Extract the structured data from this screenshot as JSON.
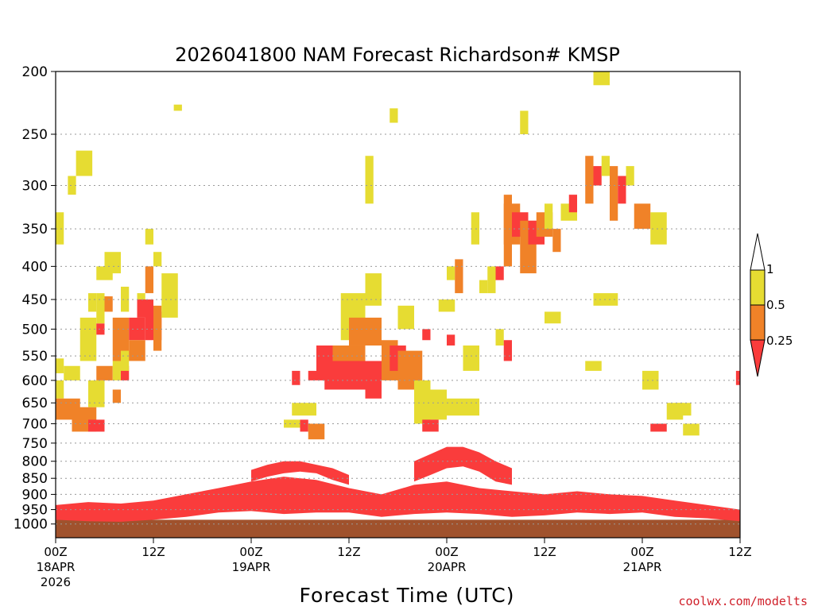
{
  "chart_data": {
    "type": "heatmap",
    "title": "2026041800 NAM Forecast Richardson# KMSP",
    "xlabel": "Forecast Time (UTC)",
    "ylabel": "",
    "credit": "coolwx.com/modelts",
    "x_range_hours": [
      0,
      84
    ],
    "y_range_hpa": [
      1050,
      200
    ],
    "y_ticks": [
      "200",
      "250",
      "300",
      "350",
      "400",
      "450",
      "500",
      "550",
      "600",
      "650",
      "700",
      "750",
      "800",
      "850",
      "900",
      "950",
      "1000"
    ],
    "y_tick_values": [
      200,
      250,
      300,
      350,
      400,
      450,
      500,
      550,
      600,
      650,
      700,
      750,
      800,
      850,
      900,
      950,
      1000
    ],
    "x_ticks": [
      {
        "hour": 0,
        "time": "00Z",
        "date": "18APR",
        "year": "2026"
      },
      {
        "hour": 12,
        "time": "12Z",
        "date": "",
        "year": ""
      },
      {
        "hour": 24,
        "time": "00Z",
        "date": "19APR",
        "year": ""
      },
      {
        "hour": 36,
        "time": "12Z",
        "date": "",
        "year": ""
      },
      {
        "hour": 48,
        "time": "00Z",
        "date": "20APR",
        "year": ""
      },
      {
        "hour": 60,
        "time": "12Z",
        "date": "",
        "year": ""
      },
      {
        "hour": 72,
        "time": "00Z",
        "date": "21APR",
        "year": ""
      },
      {
        "hour": 84,
        "time": "12Z",
        "date": "",
        "year": ""
      }
    ],
    "legend": {
      "labels": [
        "1",
        "0.5",
        "0.25"
      ],
      "levels": [
        {
          "range": "> 1",
          "color": "#ffffff"
        },
        {
          "range": "0.5 - 1",
          "color": "#e6dc32"
        },
        {
          "range": "0.25 - 0.5",
          "color": "#f08228"
        },
        {
          "range": "< 0.25",
          "color": "#fa3c3c"
        }
      ]
    },
    "ground_color": "#a0522d",
    "colors": {
      "yellow": "#e6dc32",
      "orange": "#f08228",
      "red": "#fa3c3c"
    },
    "cells": [
      {
        "c": "yellow",
        "x0": 0,
        "x1": 1,
        "p0": 370,
        "p1": 330
      },
      {
        "c": "yellow",
        "x0": 0,
        "x1": 1,
        "p0": 585,
        "p1": 555
      },
      {
        "c": "yellow",
        "x0": 0,
        "x1": 1,
        "p0": 640,
        "p1": 600
      },
      {
        "c": "orange",
        "x0": 0,
        "x1": 3,
        "p0": 690,
        "p1": 640
      },
      {
        "c": "yellow",
        "x0": 1,
        "x1": 3,
        "p0": 600,
        "p1": 570
      },
      {
        "c": "yellow",
        "x0": 1.5,
        "x1": 2.5,
        "p0": 310,
        "p1": 290
      },
      {
        "c": "yellow",
        "x0": 2.5,
        "x1": 4.5,
        "p0": 290,
        "p1": 265
      },
      {
        "c": "orange",
        "x0": 2,
        "x1": 5,
        "p0": 720,
        "p1": 660
      },
      {
        "c": "yellow",
        "x0": 4,
        "x1": 5,
        "p0": 470,
        "p1": 440
      },
      {
        "c": "yellow",
        "x0": 3,
        "x1": 5,
        "p0": 560,
        "p1": 480
      },
      {
        "c": "red",
        "x0": 5,
        "x1": 6,
        "p0": 510,
        "p1": 490
      },
      {
        "c": "yellow",
        "x0": 4,
        "x1": 6,
        "p0": 660,
        "p1": 600
      },
      {
        "c": "red",
        "x0": 4,
        "x1": 6,
        "p0": 720,
        "p1": 690
      },
      {
        "c": "yellow",
        "x0": 5,
        "x1": 6,
        "p0": 490,
        "p1": 440
      },
      {
        "c": "orange",
        "x0": 5,
        "x1": 7,
        "p0": 600,
        "p1": 570
      },
      {
        "c": "yellow",
        "x0": 5,
        "x1": 7,
        "p0": 420,
        "p1": 400
      },
      {
        "c": "yellow",
        "x0": 6,
        "x1": 8,
        "p0": 410,
        "p1": 380
      },
      {
        "c": "orange",
        "x0": 6,
        "x1": 7,
        "p0": 470,
        "p1": 445
      },
      {
        "c": "orange",
        "x0": 7,
        "x1": 8,
        "p0": 650,
        "p1": 620
      },
      {
        "c": "yellow",
        "x0": 7,
        "x1": 8,
        "p0": 600,
        "p1": 560
      },
      {
        "c": "orange",
        "x0": 7,
        "x1": 9,
        "p0": 560,
        "p1": 480
      },
      {
        "c": "red",
        "x0": 8,
        "x1": 9,
        "p0": 600,
        "p1": 570
      },
      {
        "c": "yellow",
        "x0": 8,
        "x1": 9,
        "p0": 580,
        "p1": 540
      },
      {
        "c": "yellow",
        "x0": 8,
        "x1": 9,
        "p0": 470,
        "p1": 430
      },
      {
        "c": "red",
        "x0": 9,
        "x1": 11,
        "p0": 520,
        "p1": 480
      },
      {
        "c": "orange",
        "x0": 9,
        "x1": 11,
        "p0": 560,
        "p1": 520
      },
      {
        "c": "yellow",
        "x0": 10,
        "x1": 11,
        "p0": 470,
        "p1": 440
      },
      {
        "c": "red",
        "x0": 10,
        "x1": 12,
        "p0": 480,
        "p1": 450
      },
      {
        "c": "orange",
        "x0": 11,
        "x1": 12,
        "p0": 440,
        "p1": 400
      },
      {
        "c": "red",
        "x0": 11,
        "x1": 13,
        "p0": 520,
        "p1": 470
      },
      {
        "c": "orange",
        "x0": 12,
        "x1": 13,
        "p0": 540,
        "p1": 460
      },
      {
        "c": "yellow",
        "x0": 12,
        "x1": 13,
        "p0": 400,
        "p1": 380
      },
      {
        "c": "yellow",
        "x0": 11,
        "x1": 12,
        "p0": 370,
        "p1": 350
      },
      {
        "c": "yellow",
        "x0": 13,
        "x1": 14,
        "p0": 480,
        "p1": 410
      },
      {
        "c": "yellow",
        "x0": 14,
        "x1": 15,
        "p0": 480,
        "p1": 410
      },
      {
        "c": "yellow",
        "x0": 14.5,
        "x1": 15.5,
        "p0": 230,
        "p1": 225
      },
      {
        "c": "yellow",
        "x0": 28,
        "x1": 30,
        "p0": 710,
        "p1": 690
      },
      {
        "c": "red",
        "x0": 29,
        "x1": 30,
        "p0": 610,
        "p1": 580
      },
      {
        "c": "yellow",
        "x0": 29,
        "x1": 32,
        "p0": 680,
        "p1": 650
      },
      {
        "c": "red",
        "x0": 30,
        "x1": 31,
        "p0": 720,
        "p1": 690
      },
      {
        "c": "orange",
        "x0": 31,
        "x1": 33,
        "p0": 740,
        "p1": 700
      },
      {
        "c": "red",
        "x0": 31,
        "x1": 32,
        "p0": 600,
        "p1": 580
      },
      {
        "c": "red",
        "x0": 32,
        "x1": 34,
        "p0": 600,
        "p1": 530
      },
      {
        "c": "orange",
        "x0": 34,
        "x1": 38,
        "p0": 570,
        "p1": 530
      },
      {
        "c": "red",
        "x0": 33,
        "x1": 38,
        "p0": 620,
        "p1": 560
      },
      {
        "c": "yellow",
        "x0": 35,
        "x1": 38,
        "p0": 520,
        "p1": 440
      },
      {
        "c": "orange",
        "x0": 36,
        "x1": 40,
        "p0": 530,
        "p1": 480
      },
      {
        "c": "yellow",
        "x0": 38,
        "x1": 40,
        "p0": 460,
        "p1": 410
      },
      {
        "c": "red",
        "x0": 38,
        "x1": 40,
        "p0": 640,
        "p1": 560
      },
      {
        "c": "orange",
        "x0": 40,
        "x1": 42,
        "p0": 600,
        "p1": 520
      },
      {
        "c": "red",
        "x0": 41,
        "x1": 43,
        "p0": 580,
        "p1": 530
      },
      {
        "c": "orange",
        "x0": 42,
        "x1": 45,
        "p0": 620,
        "p1": 540
      },
      {
        "c": "yellow",
        "x0": 42,
        "x1": 44,
        "p0": 500,
        "p1": 460
      },
      {
        "c": "yellow",
        "x0": 38,
        "x1": 39,
        "p0": 320,
        "p1": 270
      },
      {
        "c": "yellow",
        "x0": 41,
        "x1": 42,
        "p0": 240,
        "p1": 228
      },
      {
        "c": "yellow",
        "x0": 44,
        "x1": 46,
        "p0": 700,
        "p1": 600
      },
      {
        "c": "yellow",
        "x0": 46,
        "x1": 48,
        "p0": 690,
        "p1": 620
      },
      {
        "c": "yellow",
        "x0": 48,
        "x1": 52,
        "p0": 680,
        "p1": 640
      },
      {
        "c": "red",
        "x0": 45,
        "x1": 46,
        "p0": 520,
        "p1": 500
      },
      {
        "c": "yellow",
        "x0": 47,
        "x1": 49,
        "p0": 470,
        "p1": 450
      },
      {
        "c": "red",
        "x0": 45,
        "x1": 47,
        "p0": 720,
        "p1": 690
      },
      {
        "c": "yellow",
        "x0": 48,
        "x1": 49,
        "p0": 420,
        "p1": 400
      },
      {
        "c": "orange",
        "x0": 49,
        "x1": 50,
        "p0": 440,
        "p1": 390
      },
      {
        "c": "red",
        "x0": 48,
        "x1": 49,
        "p0": 530,
        "p1": 510
      },
      {
        "c": "yellow",
        "x0": 50,
        "x1": 52,
        "p0": 580,
        "p1": 530
      },
      {
        "c": "yellow",
        "x0": 51,
        "x1": 52,
        "p0": 370,
        "p1": 330
      },
      {
        "c": "yellow",
        "x0": 52,
        "x1": 53,
        "p0": 440,
        "p1": 420
      },
      {
        "c": "yellow",
        "x0": 53,
        "x1": 54,
        "p0": 440,
        "p1": 400
      },
      {
        "c": "red",
        "x0": 54,
        "x1": 55,
        "p0": 420,
        "p1": 400
      },
      {
        "c": "orange",
        "x0": 55,
        "x1": 56,
        "p0": 400,
        "p1": 310
      },
      {
        "c": "yellow",
        "x0": 56,
        "x1": 57,
        "p0": 360,
        "p1": 340
      },
      {
        "c": "orange",
        "x0": 55,
        "x1": 57,
        "p0": 370,
        "p1": 320
      },
      {
        "c": "red",
        "x0": 56,
        "x1": 58,
        "p0": 360,
        "p1": 330
      },
      {
        "c": "orange",
        "x0": 57,
        "x1": 59,
        "p0": 410,
        "p1": 340
      },
      {
        "c": "red",
        "x0": 58,
        "x1": 60,
        "p0": 370,
        "p1": 340
      },
      {
        "c": "orange",
        "x0": 59,
        "x1": 61,
        "p0": 360,
        "p1": 330
      },
      {
        "c": "yellow",
        "x0": 60,
        "x1": 61,
        "p0": 350,
        "p1": 320
      },
      {
        "c": "orange",
        "x0": 61,
        "x1": 62,
        "p0": 380,
        "p1": 350
      },
      {
        "c": "yellow",
        "x0": 62,
        "x1": 64,
        "p0": 340,
        "p1": 320
      },
      {
        "c": "red",
        "x0": 63,
        "x1": 64,
        "p0": 330,
        "p1": 310
      },
      {
        "c": "yellow",
        "x0": 57,
        "x1": 58,
        "p0": 250,
        "p1": 230
      },
      {
        "c": "yellow",
        "x0": 60,
        "x1": 62,
        "p0": 490,
        "p1": 470
      },
      {
        "c": "yellow",
        "x0": 54,
        "x1": 55,
        "p0": 530,
        "p1": 500
      },
      {
        "c": "red",
        "x0": 55,
        "x1": 56,
        "p0": 560,
        "p1": 520
      },
      {
        "c": "orange",
        "x0": 65,
        "x1": 66,
        "p0": 320,
        "p1": 270
      },
      {
        "c": "red",
        "x0": 66,
        "x1": 67,
        "p0": 300,
        "p1": 280
      },
      {
        "c": "yellow",
        "x0": 67,
        "x1": 68,
        "p0": 290,
        "p1": 270
      },
      {
        "c": "orange",
        "x0": 68,
        "x1": 69,
        "p0": 340,
        "p1": 280
      },
      {
        "c": "red",
        "x0": 69,
        "x1": 70,
        "p0": 320,
        "p1": 290
      },
      {
        "c": "yellow",
        "x0": 70,
        "x1": 71,
        "p0": 300,
        "p1": 280
      },
      {
        "c": "orange",
        "x0": 71,
        "x1": 73,
        "p0": 350,
        "p1": 320
      },
      {
        "c": "yellow",
        "x0": 73,
        "x1": 75,
        "p0": 370,
        "p1": 330
      },
      {
        "c": "yellow",
        "x0": 66,
        "x1": 69,
        "p0": 460,
        "p1": 440
      },
      {
        "c": "yellow",
        "x0": 66,
        "x1": 68,
        "p0": 210,
        "p1": 200
      },
      {
        "c": "yellow",
        "x0": 65,
        "x1": 67,
        "p0": 580,
        "p1": 560
      },
      {
        "c": "red",
        "x0": 73,
        "x1": 75,
        "p0": 720,
        "p1": 700
      },
      {
        "c": "yellow",
        "x0": 75,
        "x1": 77,
        "p0": 690,
        "p1": 650
      },
      {
        "c": "yellow",
        "x0": 77,
        "x1": 79,
        "p0": 730,
        "p1": 700
      },
      {
        "c": "yellow",
        "x0": 76,
        "x1": 78,
        "p0": 680,
        "p1": 650
      },
      {
        "c": "red",
        "x0": 83.5,
        "x1": 84,
        "p0": 610,
        "p1": 580
      },
      {
        "c": "yellow",
        "x0": 72,
        "x1": 74,
        "p0": 620,
        "p1": 580
      }
    ],
    "bands": [
      {
        "c": "red",
        "points": [
          [
            0,
            985
          ],
          [
            4,
            990
          ],
          [
            8,
            992
          ],
          [
            12,
            985
          ],
          [
            16,
            975
          ],
          [
            20,
            960
          ],
          [
            24,
            955
          ],
          [
            28,
            965
          ],
          [
            32,
            960
          ],
          [
            36,
            960
          ],
          [
            40,
            975
          ],
          [
            44,
            965
          ],
          [
            48,
            960
          ],
          [
            52,
            965
          ],
          [
            56,
            975
          ],
          [
            60,
            970
          ],
          [
            64,
            960
          ],
          [
            68,
            965
          ],
          [
            72,
            960
          ],
          [
            76,
            975
          ],
          [
            80,
            980
          ],
          [
            84,
            990
          ]
        ],
        "bottom": [
          [
            0,
            935
          ],
          [
            4,
            925
          ],
          [
            8,
            930
          ],
          [
            12,
            920
          ],
          [
            16,
            900
          ],
          [
            20,
            880
          ],
          [
            24,
            860
          ],
          [
            28,
            845
          ],
          [
            32,
            855
          ],
          [
            36,
            880
          ],
          [
            40,
            900
          ],
          [
            44,
            870
          ],
          [
            48,
            860
          ],
          [
            52,
            880
          ],
          [
            56,
            890
          ],
          [
            60,
            900
          ],
          [
            64,
            890
          ],
          [
            68,
            900
          ],
          [
            72,
            905
          ],
          [
            76,
            920
          ],
          [
            80,
            935
          ],
          [
            84,
            950
          ]
        ]
      },
      {
        "c": "red",
        "points": [
          [
            24,
            860
          ],
          [
            26,
            845
          ],
          [
            28,
            835
          ],
          [
            30,
            830
          ],
          [
            32,
            835
          ],
          [
            34,
            855
          ],
          [
            36,
            870
          ]
        ],
        "bottom": [
          [
            24,
            825
          ],
          [
            26,
            810
          ],
          [
            28,
            800
          ],
          [
            30,
            800
          ],
          [
            32,
            810
          ],
          [
            34,
            820
          ],
          [
            36,
            840
          ]
        ]
      },
      {
        "c": "red",
        "points": [
          [
            44,
            860
          ],
          [
            46,
            840
          ],
          [
            48,
            820
          ],
          [
            50,
            815
          ],
          [
            52,
            830
          ],
          [
            54,
            860
          ],
          [
            56,
            870
          ]
        ],
        "bottom": [
          [
            44,
            800
          ],
          [
            46,
            780
          ],
          [
            48,
            760
          ],
          [
            50,
            760
          ],
          [
            52,
            775
          ],
          [
            54,
            800
          ],
          [
            56,
            820
          ]
        ]
      }
    ]
  }
}
